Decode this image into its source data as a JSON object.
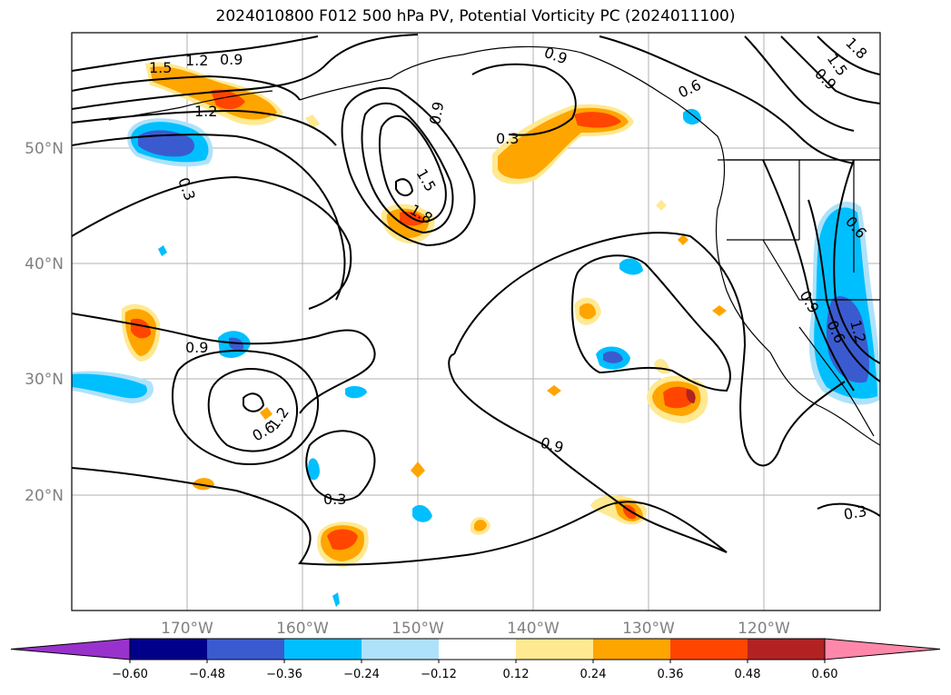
{
  "title": "2024010800 F012 500 hPa PV, Potential Vorticity PC (2024011100)",
  "lat_ticks": [
    {
      "label": "50°N",
      "value": 50
    },
    {
      "label": "40°N",
      "value": 40
    },
    {
      "label": "30°N",
      "value": 30
    },
    {
      "label": "20°N",
      "value": 20
    }
  ],
  "lon_ticks": [
    {
      "label": "170°W",
      "value": -170
    },
    {
      "label": "160°W",
      "value": -160
    },
    {
      "label": "150°W",
      "value": -150
    },
    {
      "label": "140°W",
      "value": -140
    },
    {
      "label": "130°W",
      "value": -130
    },
    {
      "label": "120°W",
      "value": -120
    }
  ],
  "extent": {
    "lon_min": -180,
    "lon_max": -110,
    "lat_min": 10,
    "lat_max": 60
  },
  "colorbar": {
    "colors": [
      "#9932cc",
      "#00008b",
      "#3a5bd0",
      "#00bfff",
      "#aee2fa",
      "#ffffff",
      "#ffe991",
      "#ffa500",
      "#ff4500",
      "#b22222",
      "#ff88aa"
    ],
    "ticks": [
      "−0.60",
      "−0.48",
      "−0.36",
      "−0.24",
      "−0.12",
      "0.12",
      "0.24",
      "0.36",
      "0.48",
      "0.60"
    ]
  },
  "contour_labels": [
    "1.5",
    "1.2",
    "0.9",
    "1.2",
    "0.3",
    "0.9",
    "1.5",
    "1.8",
    "0.3",
    "0.9",
    "0.6",
    "1.8",
    "1.5",
    "0.9",
    "0.6",
    "0.9",
    "0.6",
    "1.2",
    "0.9",
    "0.6",
    "1.2",
    "0.9",
    "0.3",
    "0.3",
    "0.3"
  ]
}
